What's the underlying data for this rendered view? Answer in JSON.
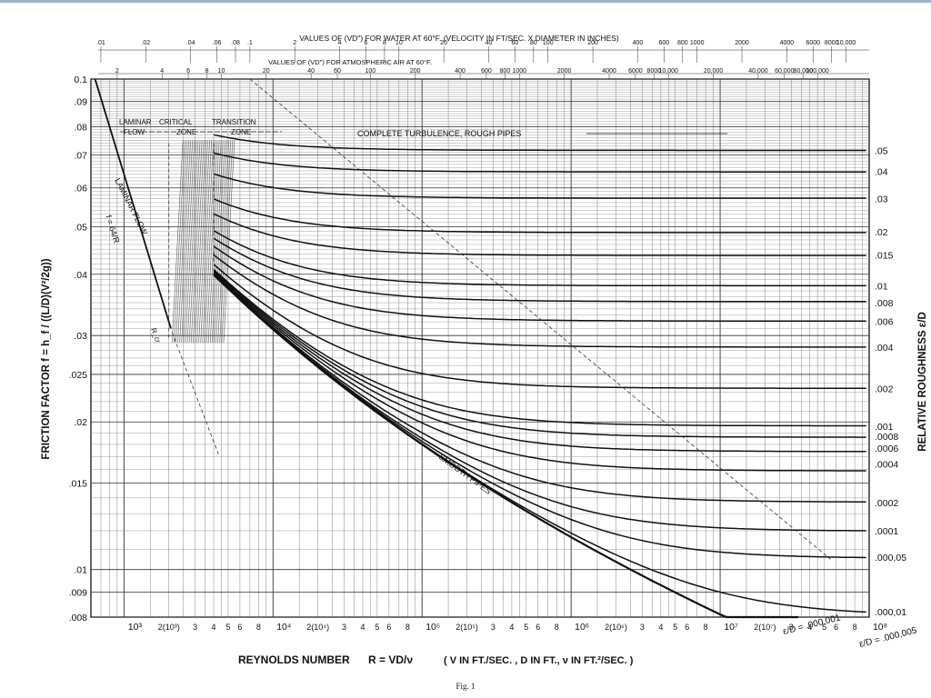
{
  "chart_data": {
    "type": "line",
    "subtitle_top_1": "VALUES OF (VD\") FOR WATER AT 60°F. (VELOCITY IN FT/SEC. X DIAMETER IN INCHES)",
    "subtitle_top_2": "VALUES OF (VD\") FOR ATMOSPHERIC AIR AT 60°F.",
    "xlabel_prefix": "REYNOLDS NUMBER",
    "xlabel_formula": "R = VD/ν",
    "xlabel_units": "( V IN FT./SEC. , D IN FT., ν IN FT.²/SEC. )",
    "ylabel": "FRICTION FACTOR f = h_f / ((L/D)(V²/2g))",
    "ylabel_right": "RELATIVE ROUGHNESS ε/D",
    "caption": "Fig. 1",
    "x_scale": "log",
    "y_scale": "log",
    "xlim": [
      600,
      100000000
    ],
    "ylim": [
      0.008,
      0.1
    ],
    "x_ticks_major": [
      {
        "v": 1000,
        "label": "10³"
      },
      {
        "v": 10000,
        "label": "10⁴"
      },
      {
        "v": 100000,
        "label": "10⁵"
      },
      {
        "v": 1000000,
        "label": "10⁶"
      },
      {
        "v": 10000000,
        "label": "10⁷"
      },
      {
        "v": 100000000,
        "label": "10⁸"
      }
    ],
    "x_ticks_minor_labels": [
      "2(10³)",
      "3",
      "4",
      "5",
      "6",
      "8"
    ],
    "y_ticks": [
      {
        "v": 0.1,
        "label": "0.1"
      },
      {
        "v": 0.09,
        "label": ".09"
      },
      {
        "v": 0.08,
        "label": ".08"
      },
      {
        "v": 0.07,
        "label": ".07"
      },
      {
        "v": 0.06,
        "label": ".06"
      },
      {
        "v": 0.05,
        "label": ".05"
      },
      {
        "v": 0.04,
        "label": ".04"
      },
      {
        "v": 0.03,
        "label": ".03"
      },
      {
        "v": 0.025,
        "label": ".025"
      },
      {
        "v": 0.02,
        "label": ".02"
      },
      {
        "v": 0.015,
        "label": ".015"
      },
      {
        "v": 0.01,
        "label": ".01"
      },
      {
        "v": 0.009,
        "label": ".009"
      },
      {
        "v": 0.008,
        "label": ".008"
      }
    ],
    "top_water_ticks": [
      {
        "label": ".01",
        "R": 700
      },
      {
        "label": ".02",
        "R": 1400
      },
      {
        "label": ".04",
        "R": 2800
      },
      {
        "label": ".06",
        "R": 4200
      },
      {
        "label": ".08",
        "R": 5600
      },
      {
        "label": ".1",
        "R": 7000
      },
      {
        "label": "2",
        "R": 14000
      },
      {
        "label": "4",
        "R": 28000
      },
      {
        "label": "6",
        "R": 42000
      },
      {
        "label": "8",
        "R": 56000
      },
      {
        "label": "10",
        "R": 70000
      },
      {
        "label": "20",
        "R": 140000
      },
      {
        "label": "40",
        "R": 280000
      },
      {
        "label": "60",
        "R": 420000
      },
      {
        "label": "80",
        "R": 560000
      },
      {
        "label": "100",
        "R": 700000
      },
      {
        "label": "200",
        "R": 1400000
      },
      {
        "label": "400",
        "R": 2800000
      },
      {
        "label": "600",
        "R": 4200000
      },
      {
        "label": "800",
        "R": 5600000
      },
      {
        "label": "1000",
        "R": 7000000
      },
      {
        "label": "2000",
        "R": 14000000
      },
      {
        "label": "4000",
        "R": 28000000
      },
      {
        "label": "6000",
        "R": 42000000
      },
      {
        "label": "8000",
        "R": 56000000
      },
      {
        "label": "10,000",
        "R": 70000000
      }
    ],
    "top_air_ticks": [
      {
        "label": "2",
        "R": 900
      },
      {
        "label": "4",
        "R": 1800
      },
      {
        "label": "6",
        "R": 2700
      },
      {
        "label": "8",
        "R": 3600
      },
      {
        "label": "10",
        "R": 4500
      },
      {
        "label": "20",
        "R": 9000
      },
      {
        "label": "40",
        "R": 18000
      },
      {
        "label": "60",
        "R": 27000
      },
      {
        "label": "100",
        "R": 45000
      },
      {
        "label": "200",
        "R": 90000
      },
      {
        "label": "400",
        "R": 180000
      },
      {
        "label": "600",
        "R": 270000
      },
      {
        "label": "800",
        "R": 360000
      },
      {
        "label": "1000",
        "R": 450000
      },
      {
        "label": "2000",
        "R": 900000
      },
      {
        "label": "4000",
        "R": 1800000
      },
      {
        "label": "6000",
        "R": 2700000
      },
      {
        "label": "8000",
        "R": 3600000
      },
      {
        "label": "10,000",
        "R": 4500000
      },
      {
        "label": "20,000",
        "R": 9000000
      },
      {
        "label": "40,000",
        "R": 18000000
      },
      {
        "label": "60,000",
        "R": 27000000
      },
      {
        "label": "80,000",
        "R": 36000000
      },
      {
        "label": "100,000",
        "R": 45000000
      }
    ],
    "zone_labels": [
      "LAMINAR",
      "FLOW",
      "CRITICAL",
      "ZONE",
      "TRANSITION",
      "ZONE",
      "COMPLETE TURBULENCE, ROUGH PIPES"
    ],
    "annotations": {
      "laminar_line": "LAMINAR FLOW",
      "laminar_formula": "f = 64/R",
      "critical": "R_cr",
      "smooth": "SMOOTH PIPES",
      "bottom_a": "ε/D = .000,001",
      "bottom_b": "ε/D = .000,005"
    },
    "series": [
      {
        "name": ".05",
        "values": [
          0.0716
        ]
      },
      {
        "name": ".04",
        "values": [
          0.0648
        ]
      },
      {
        "name": ".03",
        "values": [
          0.0571
        ]
      },
      {
        "name": ".02",
        "values": [
          0.0488
        ]
      },
      {
        "name": ".015",
        "values": [
          0.0438
        ]
      },
      {
        "name": ".01",
        "values": [
          0.0379
        ]
      },
      {
        "name": ".008",
        "values": [
          0.035
        ]
      },
      {
        "name": ".006",
        "values": [
          0.0321
        ]
      },
      {
        "name": ".004",
        "values": [
          0.0284
        ]
      },
      {
        "name": ".002",
        "values": [
          0.0234
        ]
      },
      {
        "name": ".001",
        "values": [
          0.0196
        ]
      },
      {
        "name": ".0008",
        "values": [
          0.0187
        ]
      },
      {
        "name": ".0006",
        "values": [
          0.0177
        ]
      },
      {
        "name": ".0004",
        "values": [
          0.0164
        ]
      },
      {
        "name": ".0002",
        "values": [
          0.0137
        ]
      },
      {
        "name": ".0001",
        "values": [
          0.012
        ]
      },
      {
        "name": ".000,05",
        "values": [
          0.0106
        ]
      },
      {
        "name": ".000,01",
        "values": [
          0.0082
        ]
      }
    ]
  }
}
